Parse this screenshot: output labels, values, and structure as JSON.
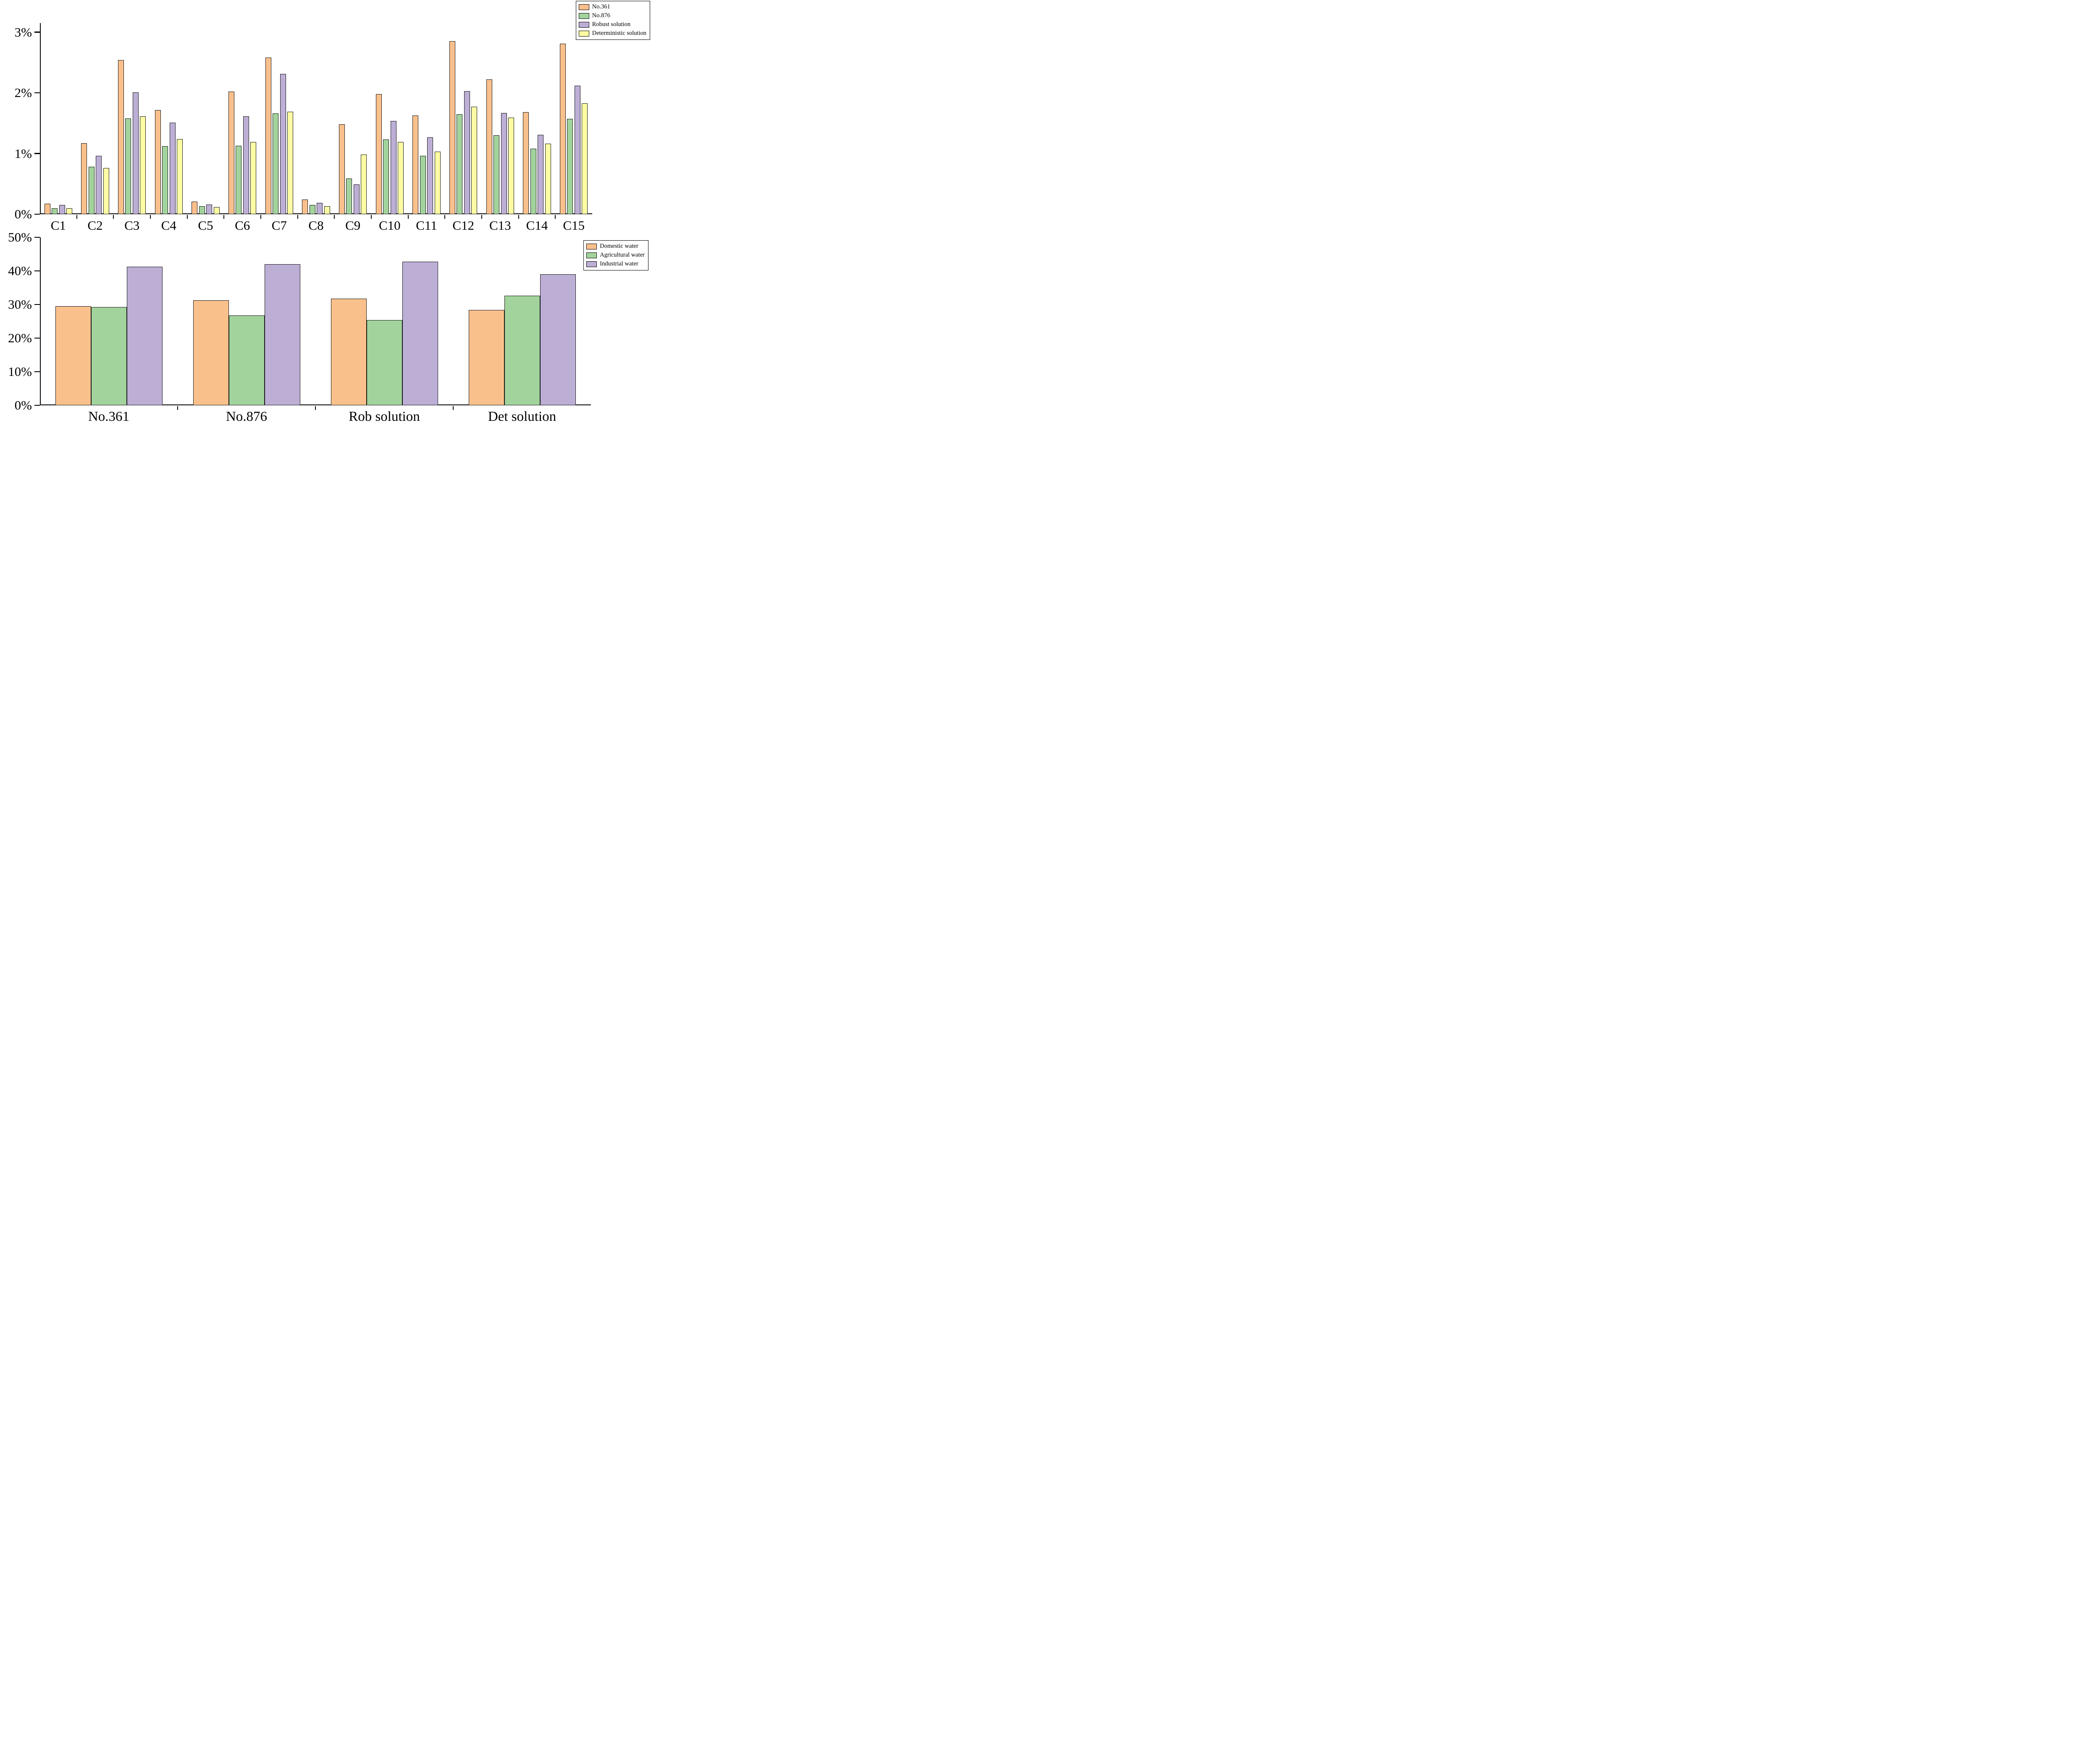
{
  "figure": {
    "description_top": "Grouped bar chart of percentage values for constraints C1-C15 under four solutions",
    "description_bottom": "Grouped bar chart of water allocation shares by solution"
  },
  "chart_data": [
    {
      "type": "bar",
      "title": "",
      "xlabel": "",
      "ylabel": "",
      "ylim": [
        0,
        3.15
      ],
      "yticks": [
        0,
        1,
        2,
        3
      ],
      "ytick_suffix": "%",
      "grid": false,
      "legend_position": "top-right",
      "categories": [
        "C1",
        "C2",
        "C3",
        "C4",
        "C5",
        "C6",
        "C7",
        "C8",
        "C9",
        "C10",
        "C11",
        "C12",
        "C13",
        "C14",
        "C15"
      ],
      "series": [
        {
          "name": "No.361",
          "color": "#FAC08C",
          "values": [
            0.17,
            1.17,
            2.54,
            1.72,
            0.21,
            2.02,
            2.58,
            0.24,
            1.48,
            1.98,
            1.63,
            2.85,
            2.22,
            1.68,
            2.81
          ]
        },
        {
          "name": "No.876",
          "color": "#A2D39C",
          "values": [
            0.1,
            0.78,
            1.58,
            1.12,
            0.13,
            1.13,
            1.66,
            0.15,
            0.59,
            1.23,
            0.96,
            1.65,
            1.3,
            1.08,
            1.57
          ]
        },
        {
          "name": "Robust solution",
          "color": "#BCAED5",
          "values": [
            0.15,
            0.96,
            2.01,
            1.51,
            0.16,
            1.61,
            2.31,
            0.19,
            0.49,
            1.54,
            1.27,
            2.03,
            1.67,
            1.31,
            2.12
          ]
        },
        {
          "name": "Deterministic solution",
          "color": "#FDFCA4",
          "values": [
            0.1,
            0.76,
            1.61,
            1.24,
            0.12,
            1.19,
            1.69,
            0.13,
            0.98,
            1.19,
            1.03,
            1.77,
            1.59,
            1.16,
            1.83
          ]
        }
      ]
    },
    {
      "type": "bar",
      "title": "",
      "xlabel": "",
      "ylabel": "",
      "ylim": [
        0,
        50
      ],
      "yticks": [
        0,
        10,
        20,
        30,
        40,
        50
      ],
      "ytick_suffix": "%",
      "grid": false,
      "legend_position": "top-right",
      "categories": [
        "No.361",
        "No.876",
        "Rob solution",
        "Det solution"
      ],
      "series": [
        {
          "name": "Domestic water",
          "color": "#FAC08C",
          "values": [
            29.5,
            31.3,
            31.8,
            28.4
          ]
        },
        {
          "name": "Agricultural water",
          "color": "#A2D39C",
          "values": [
            29.3,
            26.7,
            25.4,
            32.6
          ]
        },
        {
          "name": "Industrial water",
          "color": "#BCAED5",
          "values": [
            41.2,
            42.0,
            42.8,
            39.0
          ]
        }
      ]
    }
  ]
}
